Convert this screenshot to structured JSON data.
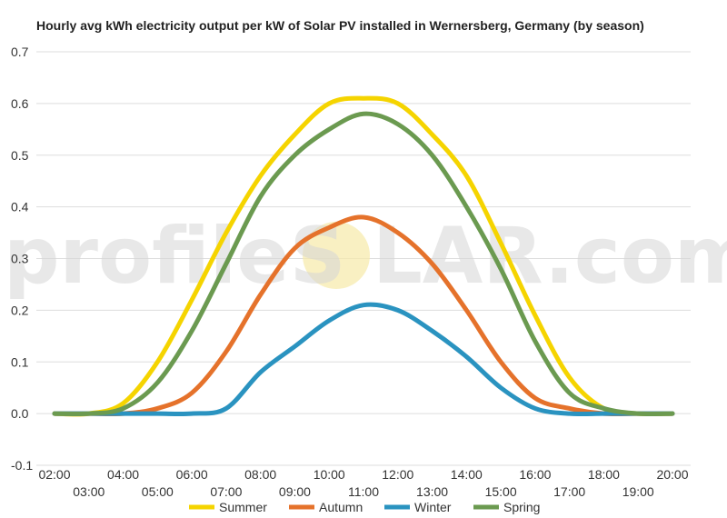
{
  "chart_data": {
    "type": "line",
    "title": "Hourly avg kWh electricity output per kW of Solar PV installed in Wernersberg, Germany (by season)",
    "xlabel": "",
    "ylabel": "",
    "x": [
      "02:00",
      "03:00",
      "04:00",
      "05:00",
      "06:00",
      "07:00",
      "08:00",
      "09:00",
      "10:00",
      "11:00",
      "12:00",
      "13:00",
      "14:00",
      "15:00",
      "16:00",
      "17:00",
      "18:00",
      "19:00",
      "20:00"
    ],
    "ylim": [
      -0.1,
      0.7
    ],
    "yticks": [
      "0.7",
      "0.6",
      "0.5",
      "0.4",
      "0.3",
      "0.2",
      "0.1",
      "0.0",
      "-0.1"
    ],
    "grid": true,
    "legend_position": "bottom",
    "series": [
      {
        "name": "Summer",
        "color": "#f5d400",
        "values": [
          0.0,
          0.0,
          0.02,
          0.1,
          0.22,
          0.35,
          0.46,
          0.54,
          0.6,
          0.61,
          0.6,
          0.54,
          0.46,
          0.33,
          0.19,
          0.07,
          0.01,
          0.0,
          0.0
        ]
      },
      {
        "name": "Autumn",
        "color": "#e5722b",
        "values": [
          0.0,
          0.0,
          0.0,
          0.01,
          0.04,
          0.12,
          0.23,
          0.32,
          0.36,
          0.38,
          0.35,
          0.29,
          0.2,
          0.1,
          0.03,
          0.01,
          0.0,
          0.0,
          0.0
        ]
      },
      {
        "name": "Winter",
        "color": "#2a93c0",
        "values": [
          0.0,
          0.0,
          0.0,
          0.0,
          0.0,
          0.01,
          0.08,
          0.13,
          0.18,
          0.21,
          0.2,
          0.16,
          0.11,
          0.05,
          0.01,
          0.0,
          0.0,
          0.0,
          0.0
        ]
      },
      {
        "name": "Spring",
        "color": "#6b9a50",
        "values": [
          0.0,
          0.0,
          0.01,
          0.06,
          0.16,
          0.29,
          0.42,
          0.5,
          0.55,
          0.58,
          0.56,
          0.5,
          0.4,
          0.28,
          0.14,
          0.04,
          0.01,
          0.0,
          0.0
        ]
      }
    ]
  },
  "watermark": {
    "left": "profileS",
    "right": "LAR.com",
    "sun_color": "#f6e9a8"
  }
}
